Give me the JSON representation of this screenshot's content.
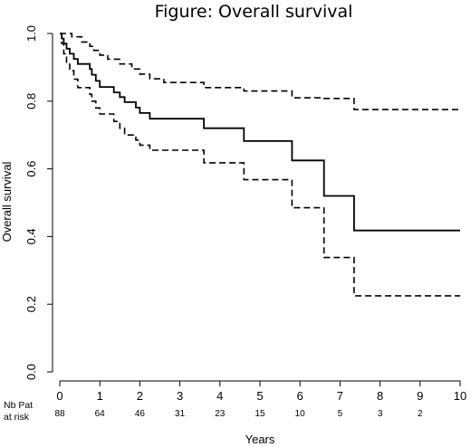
{
  "chart_data": {
    "type": "line",
    "title": "Figure: Overall survival",
    "xlabel": "Years",
    "ylabel": "Overall survival",
    "xlim": [
      0,
      10
    ],
    "ylim": [
      0,
      1
    ],
    "xticks": [
      "0",
      "1",
      "2",
      "3",
      "4",
      "5",
      "6",
      "7",
      "8",
      "9",
      "10"
    ],
    "yticks": [
      "0.0",
      "0.2",
      "0.4",
      "0.6",
      "0.8",
      "1.0"
    ],
    "grid": false,
    "risk_table": {
      "label_line1": "Nb Pat",
      "label_line2": "at risk",
      "times": [
        0,
        1,
        2,
        3,
        4,
        5,
        6,
        7,
        8,
        9
      ],
      "counts": [
        "88",
        "64",
        "46",
        "31",
        "23",
        "15",
        "10",
        "5",
        "3",
        "2"
      ]
    },
    "series": [
      {
        "style": "solid",
        "points": [
          [
            0,
            1.0
          ],
          [
            0.05,
            0.985
          ],
          [
            0.1,
            0.97
          ],
          [
            0.17,
            0.955
          ],
          [
            0.25,
            0.94
          ],
          [
            0.35,
            0.925
          ],
          [
            0.45,
            0.91
          ],
          [
            0.75,
            0.895
          ],
          [
            0.8,
            0.878
          ],
          [
            0.9,
            0.86
          ],
          [
            1.0,
            0.842
          ],
          [
            1.35,
            0.826
          ],
          [
            1.5,
            0.812
          ],
          [
            1.62,
            0.797
          ],
          [
            1.9,
            0.781
          ],
          [
            2.0,
            0.765
          ],
          [
            2.25,
            0.748
          ],
          [
            3.6,
            0.72
          ],
          [
            4.6,
            0.682
          ],
          [
            5.8,
            0.625
          ],
          [
            6.6,
            0.52
          ],
          [
            7.35,
            0.418
          ],
          [
            10.0,
            0.418
          ]
        ]
      },
      {
        "style": "dashed",
        "points": [
          [
            0,
            1.0
          ],
          [
            0.3,
            0.99
          ],
          [
            0.55,
            0.975
          ],
          [
            0.75,
            0.962
          ],
          [
            0.85,
            0.95
          ],
          [
            1.0,
            0.936
          ],
          [
            1.2,
            0.924
          ],
          [
            1.5,
            0.91
          ],
          [
            1.8,
            0.895
          ],
          [
            2.0,
            0.88
          ],
          [
            2.25,
            0.866
          ],
          [
            2.6,
            0.855
          ],
          [
            3.6,
            0.84
          ],
          [
            4.6,
            0.83
          ],
          [
            5.8,
            0.81
          ],
          [
            6.6,
            0.808
          ],
          [
            7.35,
            0.775
          ],
          [
            10.0,
            0.775
          ]
        ]
      },
      {
        "style": "dashed",
        "points": [
          [
            0,
            1.0
          ],
          [
            0.05,
            0.97
          ],
          [
            0.1,
            0.94
          ],
          [
            0.17,
            0.915
          ],
          [
            0.25,
            0.89
          ],
          [
            0.35,
            0.865
          ],
          [
            0.45,
            0.84
          ],
          [
            0.75,
            0.82
          ],
          [
            0.8,
            0.8
          ],
          [
            0.9,
            0.78
          ],
          [
            1.0,
            0.762
          ],
          [
            1.35,
            0.74
          ],
          [
            1.5,
            0.72
          ],
          [
            1.62,
            0.7
          ],
          [
            1.9,
            0.685
          ],
          [
            2.0,
            0.67
          ],
          [
            2.25,
            0.655
          ],
          [
            3.6,
            0.618
          ],
          [
            4.6,
            0.568
          ],
          [
            5.8,
            0.485
          ],
          [
            6.6,
            0.338
          ],
          [
            7.35,
            0.225
          ],
          [
            10.0,
            0.225
          ]
        ]
      }
    ]
  }
}
